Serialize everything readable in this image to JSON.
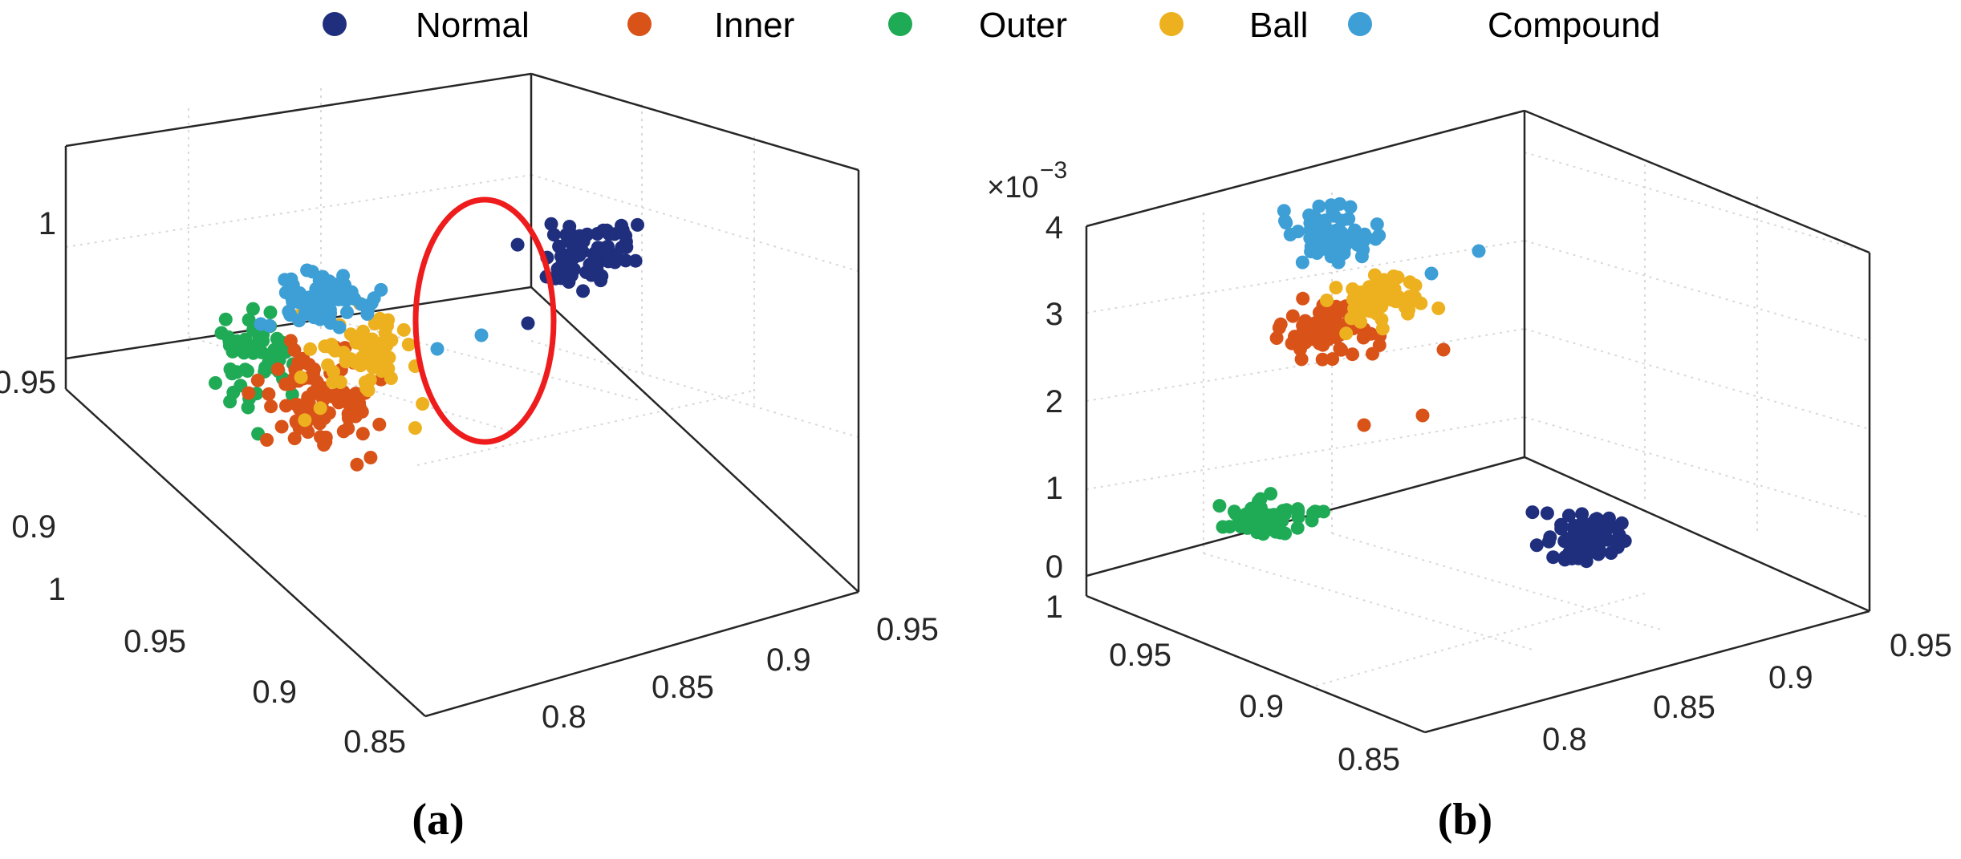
{
  "colors": {
    "Normal": "#1f2f7d",
    "Inner": "#d95319",
    "Outer": "#1faa55",
    "Ball": "#edb120",
    "Compound": "#3d9fd6",
    "highlight": "#ee1c1c",
    "axis": "#262626",
    "grid": "#d9d9d9"
  },
  "legend": [
    "Normal",
    "Inner",
    "Outer",
    "Ball",
    "Compound"
  ],
  "chart_data": [
    {
      "type": "scatter",
      "panel_label": "(a)",
      "z_ticks": [
        "1",
        "0.95",
        "0.9"
      ],
      "y_ticks": [
        "1",
        "0.95",
        "0.9",
        "0.85"
      ],
      "x_ticks": [
        "0.8",
        "0.85",
        "0.9",
        "0.95"
      ],
      "annotation": "red ellipse around Compound outliers near Normal cluster",
      "series": [
        {
          "name": "Normal",
          "center": [
            0.88,
            0.93,
            0.985
          ],
          "spread": [
            0.014,
            0.012,
            0.012
          ],
          "count": 75,
          "outliers": [
            [
              0.85,
              0.93,
              0.965
            ]
          ]
        },
        {
          "name": "Inner",
          "center": [
            0.83,
            0.94,
            0.945
          ],
          "spread": [
            0.016,
            0.015,
            0.012
          ],
          "count": 95,
          "outliers": []
        },
        {
          "name": "Outer",
          "center": [
            0.81,
            0.975,
            0.96
          ],
          "spread": [
            0.012,
            0.012,
            0.008
          ],
          "count": 55,
          "outliers": []
        },
        {
          "name": "Ball",
          "center": [
            0.84,
            0.93,
            0.955
          ],
          "spread": [
            0.014,
            0.013,
            0.012
          ],
          "count": 70,
          "outliers": []
        },
        {
          "name": "Compound",
          "center": [
            0.825,
            0.95,
            0.968
          ],
          "spread": [
            0.013,
            0.012,
            0.008
          ],
          "count": 75,
          "outliers": [
            [
              0.86,
              0.93,
              0.968
            ],
            [
              0.875,
              0.93,
              0.966
            ]
          ]
        }
      ]
    },
    {
      "type": "scatter",
      "panel_label": "(b)",
      "z_exponent": "×10",
      "z_exponent_power": "−3",
      "z_ticks": [
        "4",
        "3",
        "2",
        "1",
        "0"
      ],
      "y_ticks": [
        "1",
        "0.95",
        "0.9",
        "0.85"
      ],
      "x_ticks": [
        "0.8",
        "0.85",
        "0.9",
        "0.95"
      ],
      "series": [
        {
          "name": "Normal",
          "center": [
            0.9,
            0.86,
            0.0003
          ],
          "spread": [
            0.012,
            0.01,
            0.0001
          ],
          "count": 75,
          "outliers": []
        },
        {
          "name": "Inner",
          "center": [
            0.82,
            0.94,
            0.0027
          ],
          "spread": [
            0.012,
            0.01,
            0.0003
          ],
          "count": 80,
          "outliers": [
            [
              0.86,
              0.93,
              0.0018
            ],
            [
              0.89,
              0.9,
              0.0023
            ]
          ]
        },
        {
          "name": "Outer",
          "center": [
            0.8,
            0.99,
            0.0006
          ],
          "spread": [
            0.012,
            0.008,
            0.0001
          ],
          "count": 70,
          "outliers": []
        },
        {
          "name": "Ball",
          "center": [
            0.85,
            0.93,
            0.0031
          ],
          "spread": [
            0.012,
            0.01,
            0.0002
          ],
          "count": 60,
          "outliers": []
        },
        {
          "name": "Compound",
          "center": [
            0.82,
            0.94,
            0.0038
          ],
          "spread": [
            0.012,
            0.01,
            0.00015
          ],
          "count": 75,
          "outliers": [
            [
              0.89,
              0.92,
              0.0035
            ],
            [
              0.92,
              0.88,
              0.0037
            ]
          ]
        }
      ]
    }
  ]
}
